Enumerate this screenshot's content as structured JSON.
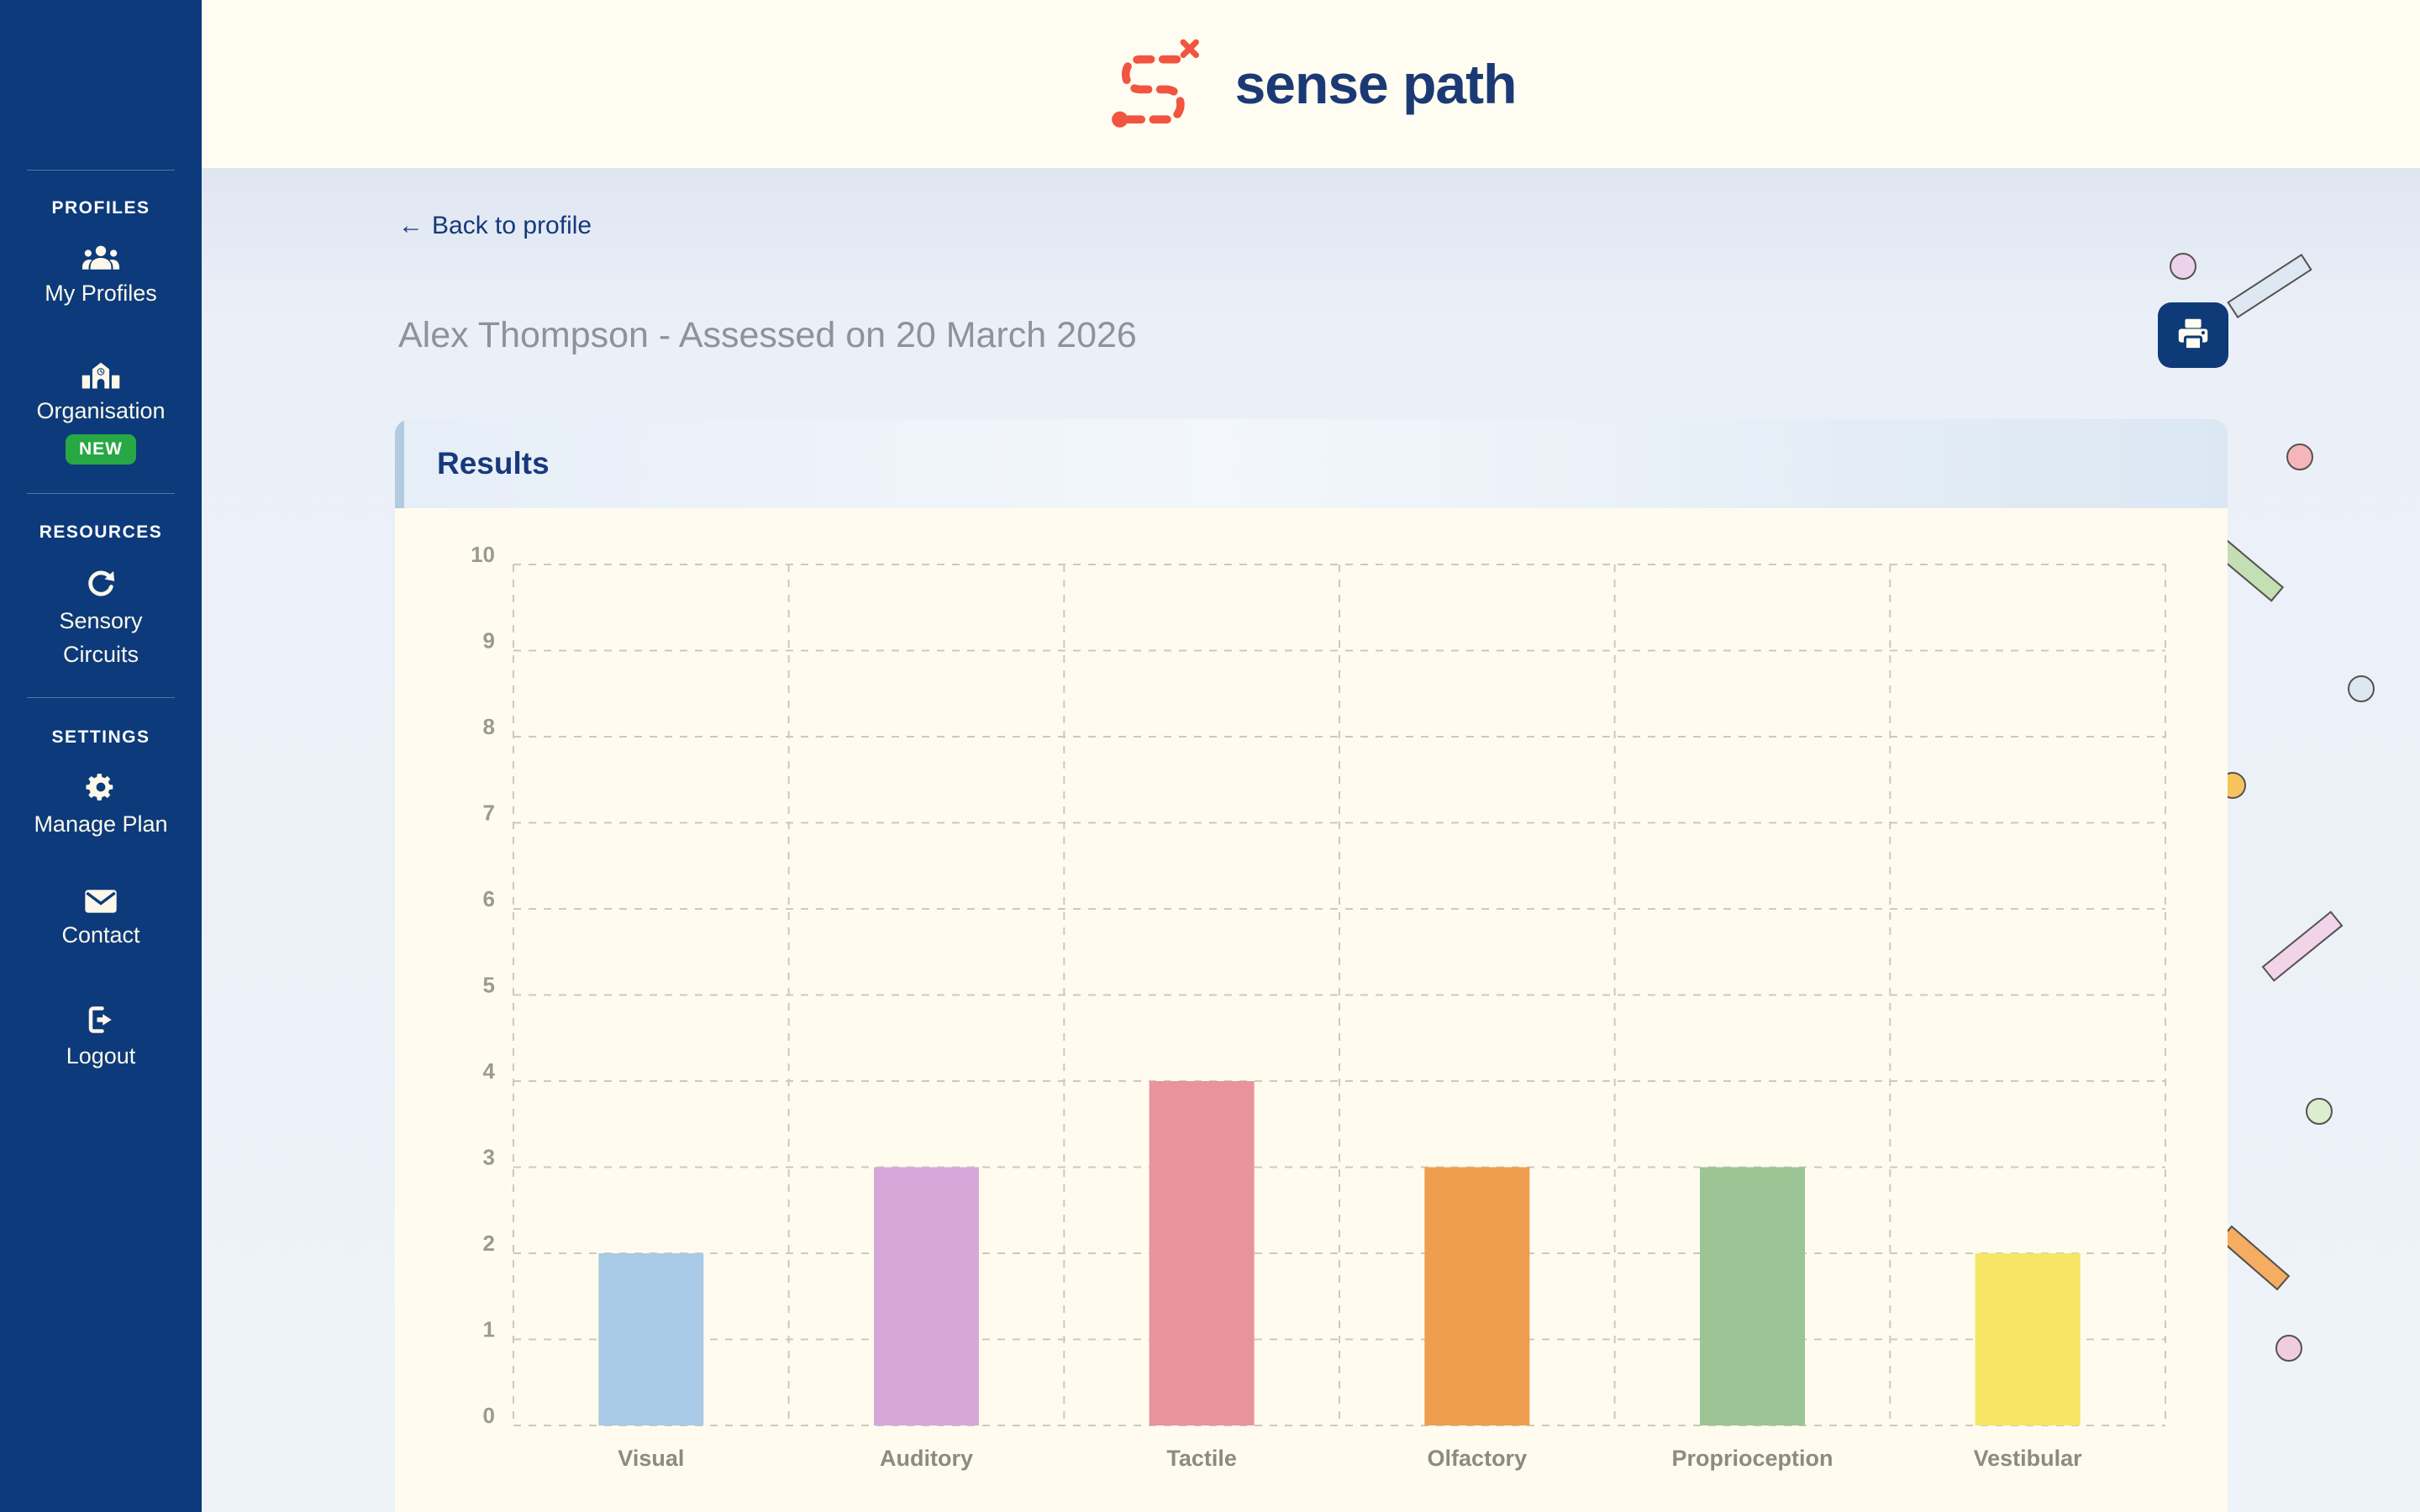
{
  "brand": {
    "name": "sense path",
    "logo_icon": "dashed-s-path-icon",
    "navy": "#1b3a75",
    "orange": "#f1543f"
  },
  "sidebar": {
    "sections": [
      {
        "heading": "PROFILES",
        "items": [
          {
            "icon": "users-icon",
            "label": "My Profiles"
          },
          {
            "icon": "school-icon",
            "label": "Organisation",
            "badge": "NEW"
          }
        ]
      },
      {
        "heading": "RESOURCES",
        "items": [
          {
            "icon": "refresh-icon",
            "label": "Sensory Circuits"
          }
        ]
      },
      {
        "heading": "SETTINGS",
        "items": [
          {
            "icon": "gear-icon",
            "label": "Manage Plan"
          }
        ]
      }
    ],
    "footer_items": [
      {
        "icon": "envelope-icon",
        "label": "Contact"
      },
      {
        "icon": "logout-icon",
        "label": "Logout"
      }
    ],
    "badge_color": "#28a745"
  },
  "page": {
    "back_arrow": "←",
    "back_link": "Back to profile",
    "title": "Alex Thompson - Assessed on 20 March 2026",
    "print_button_icon": "printer-icon"
  },
  "results_panel": {
    "title": "Results"
  },
  "chart_data": {
    "type": "bar",
    "title": "Results",
    "categories": [
      "Visual",
      "Auditory",
      "Tactile",
      "Olfactory",
      "Proprioception",
      "Vestibular"
    ],
    "values": [
      2,
      3,
      4,
      3,
      3,
      2
    ],
    "bar_colors": [
      "#a8cae6",
      "#d6a8da",
      "#e9939d",
      "#ef9d4e",
      "#9cc494",
      "#f7e566"
    ],
    "xlabel": "",
    "ylabel": "",
    "ylim": [
      0,
      10
    ],
    "ytick_step": 1,
    "grid": "dashed-both-axes",
    "legend": "none"
  }
}
